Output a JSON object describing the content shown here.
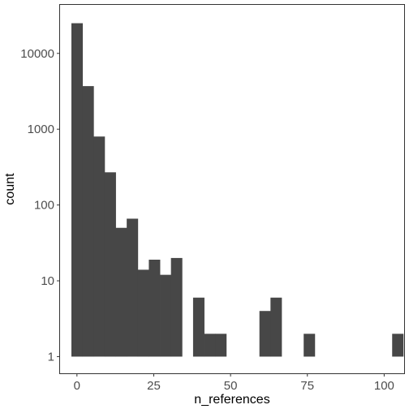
{
  "chart_data": {
    "type": "bar",
    "xlabel": "n_references",
    "ylabel": "count",
    "y_scale": "log10",
    "xlim": [
      -5.5,
      106.5
    ],
    "ylim_log10": [
      -0.22,
      4.64
    ],
    "x_ticks": [
      0,
      25,
      50,
      75,
      100
    ],
    "x_tick_labels": [
      "0",
      "25",
      "50",
      "75",
      "100"
    ],
    "y_ticks": [
      1,
      10,
      100,
      1000,
      10000
    ],
    "y_tick_labels": [
      "1",
      "10",
      "100",
      "1000",
      "10000"
    ],
    "bin_width": 3.6,
    "bins": [
      {
        "x": 0.0,
        "count": 25000
      },
      {
        "x": 3.6,
        "count": 3700
      },
      {
        "x": 7.2,
        "count": 800
      },
      {
        "x": 10.8,
        "count": 270
      },
      {
        "x": 14.4,
        "count": 50
      },
      {
        "x": 18.0,
        "count": 66
      },
      {
        "x": 21.6,
        "count": 14
      },
      {
        "x": 25.2,
        "count": 19
      },
      {
        "x": 28.8,
        "count": 12
      },
      {
        "x": 32.4,
        "count": 20
      },
      {
        "x": 39.6,
        "count": 6
      },
      {
        "x": 43.2,
        "count": 2
      },
      {
        "x": 46.8,
        "count": 2
      },
      {
        "x": 61.2,
        "count": 4
      },
      {
        "x": 64.8,
        "count": 6
      },
      {
        "x": 75.6,
        "count": 2
      },
      {
        "x": 104.4,
        "count": 2
      }
    ],
    "bar_color": "#474747",
    "grid": false,
    "panel_border": true,
    "legend": "none"
  }
}
